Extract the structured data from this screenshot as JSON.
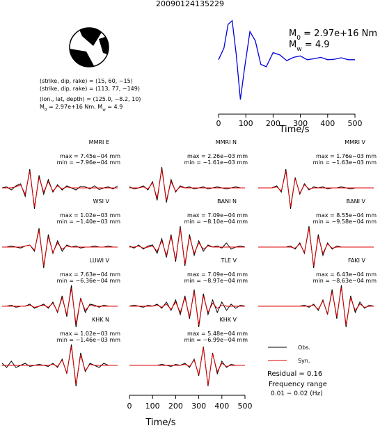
{
  "title": "20090124135229",
  "source": {
    "lines": [
      "(strike, dip, rake) = (15, 60, −15)",
      "(strike, dip, rake) = (113, 77, −149)",
      "(lon., lat, depth) = (125.0, −8.2, 10)"
    ],
    "moment_parts": [
      {
        "text": "M"
      },
      {
        "sub": "0"
      },
      {
        "text": " = 2.97e+16 Nm, M"
      },
      {
        "sub": "w"
      },
      {
        "text": " = 4.9"
      }
    ]
  },
  "chart_data": [
    {
      "type": "line",
      "color": "#0000dd",
      "xlabel": "Time/s",
      "xlim": [
        0,
        500
      ],
      "xticks": [
        0,
        100,
        200,
        300,
        400,
        500
      ],
      "ylim": [
        -1,
        1
      ],
      "annotations": [
        [
          {
            "text": "M"
          },
          {
            "sub": "0"
          },
          {
            "text": " = 2.97e+16 Nm"
          }
        ],
        [
          {
            "text": "M"
          },
          {
            "sub": "w"
          },
          {
            "text": " = 4.9"
          }
        ]
      ],
      "x": [
        0,
        20,
        35,
        50,
        65,
        80,
        95,
        115,
        135,
        155,
        175,
        200,
        225,
        250,
        275,
        300,
        325,
        350,
        375,
        400,
        425,
        450,
        475,
        500
      ],
      "values": [
        0.1,
        0.35,
        0.85,
        0.93,
        0.2,
        -0.75,
        -0.1,
        0.7,
        0.5,
        0.0,
        -0.05,
        0.25,
        0.2,
        0.08,
        0.15,
        0.18,
        0.1,
        0.12,
        0.15,
        0.1,
        0.11,
        0.14,
        0.1,
        0.1
      ]
    },
    {
      "type": "waveforms",
      "xlabel": "Time/s",
      "xlim": [
        0,
        500
      ],
      "xticks": [
        0,
        100,
        200,
        300,
        400,
        500
      ],
      "ylim": [
        -1,
        1
      ],
      "legend": [
        {
          "name": "Obs.",
          "color": "#000000"
        },
        {
          "name": "Syn.",
          "color": "#e00000"
        }
      ],
      "notes": [
        "Residual = 0.16",
        "Frequency range",
        "0.01 − 0.02 (Hz)"
      ],
      "x": [
        0,
        20,
        40,
        60,
        80,
        100,
        120,
        140,
        160,
        180,
        200,
        220,
        240,
        260,
        280,
        300,
        320,
        340,
        360,
        380,
        400,
        420,
        440,
        460,
        480,
        500
      ],
      "panels": [
        {
          "station": "MMRI E",
          "max": "max = 7.45e−04 mm",
          "min": "min = −7.96e−04 mm",
          "obs": [
            0,
            0.05,
            -0.1,
            0.1,
            0.2,
            -0.4,
            0.9,
            -1,
            0.6,
            -0.3,
            0.4,
            -0.2,
            0.15,
            -0.1,
            0.1,
            0,
            -0.1,
            0.08,
            0.05,
            -0.05,
            0.1,
            -0.08,
            0,
            0.05,
            -0.05,
            0.1
          ],
          "syn": [
            0,
            0,
            0,
            0.05,
            0.15,
            -0.3,
            0.8,
            -0.9,
            0.5,
            -0.2,
            0.3,
            -0.15,
            0.1,
            -0.05,
            0.05,
            0,
            0,
            0,
            0,
            0,
            0,
            0,
            0,
            0,
            0,
            0
          ]
        },
        {
          "station": "MMRI N",
          "max": "max = 2.26e−03 mm",
          "min": "min = −1.61e−03 mm",
          "obs": [
            0.05,
            -0.05,
            0,
            0.1,
            -0.1,
            0.3,
            -0.6,
            1,
            -0.7,
            0.4,
            -0.2,
            0.1,
            0,
            0.05,
            -0.05,
            0,
            0.05,
            -0.05,
            0,
            0.05,
            0,
            -0.05,
            0,
            0.05,
            0,
            0
          ],
          "syn": [
            0,
            0,
            0,
            0.05,
            -0.05,
            0.25,
            -0.5,
            0.9,
            -0.6,
            0.3,
            -0.15,
            0.05,
            0,
            0,
            0,
            0,
            0,
            0,
            0,
            0,
            0,
            0,
            0,
            0,
            0,
            0
          ]
        },
        {
          "station": "MMRI V",
          "max": "max = 1.76e−03 mm",
          "min": "min = −1.63e−03 mm",
          "obs": [
            0,
            0,
            0,
            0,
            0.1,
            -0.2,
            0.9,
            -1,
            0.5,
            -0.3,
            0.2,
            -0.1,
            0.05,
            0,
            0.05,
            -0.05,
            0,
            0,
            0.05,
            0,
            -0.05,
            0,
            0,
            0,
            0,
            0
          ],
          "syn": [
            0,
            0,
            0,
            0,
            0.05,
            -0.15,
            0.8,
            -0.9,
            0.45,
            -0.25,
            0.15,
            -0.05,
            0,
            0,
            0,
            0,
            0,
            0,
            0,
            0,
            0,
            0,
            0,
            0,
            0,
            0
          ]
        },
        {
          "station": "WSI V",
          "max": "max = 1.02e−03 mm",
          "min": "min = −1.40e−03 mm",
          "obs": [
            0,
            0,
            0.05,
            0,
            -0.05,
            0.05,
            0.1,
            -0.2,
            0.9,
            -1,
            0.6,
            -0.3,
            0.3,
            -0.2,
            0.1,
            0,
            0.05,
            -0.05,
            0,
            0,
            0.05,
            0,
            0,
            0.05,
            0,
            0
          ],
          "syn": [
            0,
            0,
            0,
            0,
            0,
            0.05,
            0.1,
            -0.15,
            0.8,
            -0.9,
            0.5,
            -0.25,
            0.2,
            -0.1,
            0.05,
            0,
            0,
            0,
            0,
            0,
            0,
            0,
            0,
            0,
            0,
            0
          ]
        },
        {
          "station": "BANI N",
          "max": "max = 7.09e−04 mm",
          "min": "min = −8.10e−04 mm",
          "obs": [
            0.05,
            -0.05,
            0.1,
            -0.1,
            0.05,
            0.1,
            -0.3,
            0.4,
            -0.5,
            0.6,
            -0.7,
            1,
            -0.9,
            0.6,
            -0.4,
            0.3,
            -0.2,
            0.1,
            0,
            0.05,
            -0.05,
            0.2,
            -0.1,
            0,
            0.05,
            0
          ],
          "syn": [
            0,
            0,
            0.05,
            -0.05,
            0,
            0.05,
            -0.2,
            0.3,
            -0.4,
            0.5,
            -0.6,
            0.9,
            -0.8,
            0.5,
            -0.3,
            0.2,
            -0.1,
            0.05,
            0,
            0,
            0,
            0,
            0,
            0,
            0,
            0
          ]
        },
        {
          "station": "BANI V",
          "max": "max = 8.55e−04 mm",
          "min": "min = −9.58e−04 mm",
          "obs": [
            0,
            0,
            0,
            0,
            0,
            0,
            0,
            0.05,
            -0.1,
            0.2,
            -0.3,
            1,
            -1,
            0.6,
            -0.4,
            0.2,
            -0.1,
            0.05,
            0,
            0,
            0,
            0,
            0,
            0,
            0,
            0
          ],
          "syn": [
            0,
            0,
            0,
            0,
            0,
            0,
            0,
            0,
            -0.05,
            0.15,
            -0.25,
            0.9,
            -0.9,
            0.5,
            -0.3,
            0.15,
            -0.05,
            0,
            0,
            0,
            0,
            0,
            0,
            0,
            0,
            0
          ]
        },
        {
          "station": "LUWI V",
          "max": "max = 7.63e−04 mm",
          "min": "min = −6.36e−04 mm",
          "obs": [
            0,
            0,
            0.05,
            -0.05,
            0,
            0,
            0.1,
            -0.1,
            0,
            0.1,
            -0.1,
            0.2,
            -0.3,
            0.5,
            -0.5,
            1,
            -1,
            0.4,
            -0.3,
            0.1,
            0.05,
            -0.05,
            0.05,
            0,
            0,
            0
          ],
          "syn": [
            0,
            0,
            0,
            0,
            0,
            0,
            0.05,
            -0.05,
            0,
            0.05,
            -0.05,
            0.15,
            -0.25,
            0.4,
            -0.4,
            0.85,
            -0.85,
            0.35,
            -0.2,
            0.05,
            0,
            0,
            0,
            0,
            0,
            0
          ]
        },
        {
          "station": "TLE V",
          "max": "max = 7.09e−04 mm",
          "min": "min = −8.97e−04 mm",
          "obs": [
            0,
            0.05,
            0,
            -0.05,
            0.05,
            0,
            0.1,
            -0.1,
            0.2,
            -0.2,
            0.3,
            -0.4,
            0.5,
            -0.6,
            0.8,
            -1,
            0.6,
            -0.4,
            0.3,
            -0.3,
            0.2,
            -0.2,
            0.1,
            -0.1,
            0.05,
            0
          ],
          "syn": [
            0,
            0,
            0,
            0,
            0,
            0,
            0.05,
            -0.05,
            0.1,
            -0.15,
            0.2,
            -0.3,
            0.4,
            -0.5,
            0.7,
            -0.9,
            0.5,
            -0.3,
            0.15,
            -0.1,
            0.05,
            0,
            0,
            0,
            0,
            0
          ]
        },
        {
          "station": "FAKI V",
          "max": "max = 6.43e−04 mm",
          "min": "min = −8.63e−04 mm",
          "obs": [
            0,
            0,
            0,
            0,
            0,
            0,
            0,
            0,
            0,
            0,
            0.05,
            -0.05,
            0.1,
            -0.2,
            0.3,
            -0.4,
            0.8,
            -0.6,
            1,
            -1,
            0.5,
            -0.3,
            0.2,
            -0.1,
            0.05,
            0
          ],
          "syn": [
            0,
            0,
            0,
            0,
            0,
            0,
            0,
            0,
            0,
            0,
            0,
            0,
            0.05,
            -0.15,
            0.25,
            -0.35,
            0.7,
            -0.5,
            0.9,
            -0.9,
            0.4,
            -0.2,
            0.1,
            -0.05,
            0,
            0
          ]
        },
        {
          "station": "KHK N",
          "max": "max = 1.02e−03 mm",
          "min": "min = −1.46e−03 mm",
          "obs": [
            0.1,
            -0.1,
            0.2,
            -0.1,
            0,
            0.1,
            -0.05,
            0,
            0.05,
            0,
            -0.05,
            0.1,
            -0.1,
            0.3,
            -0.4,
            1,
            -1,
            0.6,
            -0.3,
            0.1,
            0,
            -0.1,
            0.1,
            0,
            0,
            0
          ],
          "syn": [
            0,
            0,
            0,
            0,
            0,
            0,
            0,
            0,
            0,
            0,
            0,
            0.05,
            -0.05,
            0.25,
            -0.35,
            0.9,
            -0.9,
            0.5,
            -0.25,
            0.05,
            0,
            0,
            0,
            0,
            0,
            0
          ]
        },
        {
          "station": "KHK V",
          "max": "max = 5.48e−04 mm",
          "min": "min = −6.99e−04 mm",
          "obs": [
            0,
            0,
            0,
            0,
            0,
            0,
            0,
            0.05,
            0,
            -0.05,
            0.05,
            0,
            0.1,
            -0.1,
            0.3,
            -0.5,
            0.9,
            -1,
            0.6,
            -0.4,
            0.2,
            -0.1,
            0.05,
            0,
            0,
            0
          ],
          "syn": [
            0,
            0,
            0,
            0,
            0,
            0,
            0,
            0,
            0,
            0,
            0,
            0,
            0.05,
            -0.05,
            0.25,
            -0.45,
            0.85,
            -0.95,
            0.55,
            -0.3,
            0.1,
            -0.05,
            0,
            0,
            0,
            0
          ]
        }
      ]
    }
  ]
}
